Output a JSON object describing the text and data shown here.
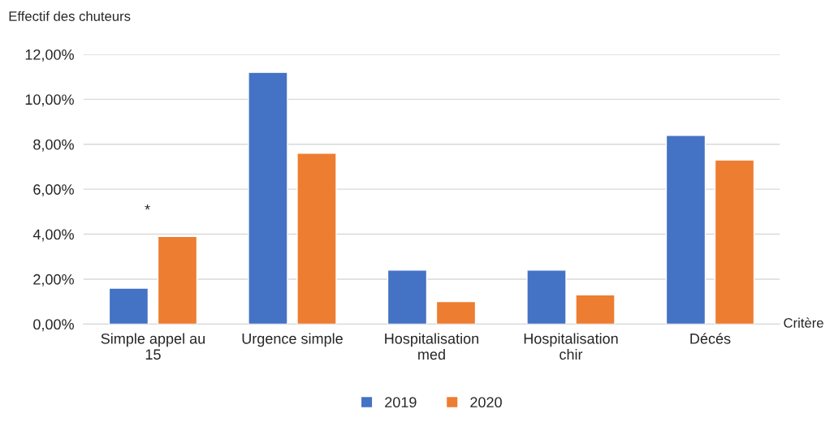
{
  "chart_data": {
    "type": "bar",
    "ylabel": "Effectif des chuteurs",
    "xlabel": "Critère",
    "categories": [
      "Simple appel au\n15",
      "Urgence simple",
      "Hospitalisation\nmed",
      "Hospitalisation\nchir",
      "Décés"
    ],
    "series": [
      {
        "name": "2019",
        "color": "#4472c4",
        "values": [
          1.6,
          11.2,
          2.4,
          2.4,
          8.4
        ]
      },
      {
        "name": "2020",
        "color": "#ed7d31",
        "values": [
          3.9,
          7.6,
          1.0,
          1.3,
          7.3
        ]
      }
    ],
    "ylim": [
      0,
      12
    ],
    "yticks": [
      {
        "value": 0,
        "label": "0,00%"
      },
      {
        "value": 2,
        "label": "2,00%"
      },
      {
        "value": 4,
        "label": "4,00%"
      },
      {
        "value": 6,
        "label": "6,00%"
      },
      {
        "value": 8,
        "label": "8,00%"
      },
      {
        "value": 10,
        "label": "10,00%"
      },
      {
        "value": 12,
        "label": "12,00%"
      }
    ],
    "annotations": [
      "*"
    ],
    "grid": "y",
    "legend": "bottom"
  }
}
